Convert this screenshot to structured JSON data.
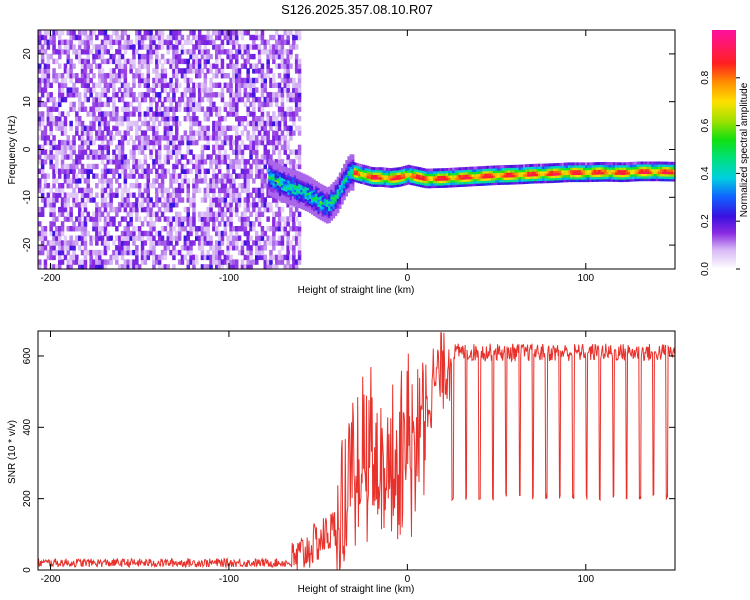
{
  "title": "S126.2025.357.08.10.R07",
  "chart_data": [
    {
      "type": "heatmap",
      "xlabel": "Height of straight line (km)",
      "ylabel": "Frequency (Hz)",
      "xlim": [
        -207,
        150
      ],
      "ylim": [
        -25,
        25
      ],
      "xticks": [
        -200,
        -100,
        0,
        100
      ],
      "yticks": [
        -20,
        -10,
        0,
        10,
        20
      ],
      "colorbar": {
        "label": "Normalized spectral amplitude",
        "range": [
          0.0,
          1.0
        ],
        "ticks": [
          0.0,
          0.2,
          0.4,
          0.6,
          0.8
        ],
        "tick_labels": [
          "0.0",
          "0.2",
          "0.4",
          "0.6",
          "0.8"
        ]
      },
      "noise_region": {
        "x_from": -207,
        "x_to": -60,
        "freq_from": -25,
        "freq_to": 25
      },
      "ridge": {
        "x": [
          -78,
          -70,
          -62,
          -56,
          -50,
          -45,
          -40,
          -36,
          -33,
          -30,
          -25,
          -20,
          -15,
          -10,
          -5,
          0,
          10,
          20,
          30,
          40,
          50,
          60,
          70,
          80,
          90,
          100,
          110,
          120,
          130,
          140,
          150
        ],
        "freq": [
          -6,
          -7.5,
          -8.5,
          -9.5,
          -11,
          -12,
          -10,
          -7,
          -5,
          -5,
          -5.5,
          -6,
          -6,
          -6.2,
          -6,
          -5.5,
          -6.3,
          -6.2,
          -6,
          -5.8,
          -5.6,
          -5.5,
          -5.3,
          -5.2,
          -5.0,
          -5.0,
          -4.9,
          -5.0,
          -4.8,
          -4.8,
          -4.9
        ],
        "peak_amplitude": 1.0
      }
    },
    {
      "type": "line",
      "xlabel": "Height of straight line (km)",
      "ylabel": "SNR (10 * v/v)",
      "xlim": [
        -207,
        150
      ],
      "ylim": [
        0,
        670
      ],
      "xticks": [
        -200,
        -100,
        0,
        100
      ],
      "yticks": [
        0,
        200,
        400,
        600
      ],
      "color": "#e8312b",
      "series": [
        {
          "name": "SNR",
          "segments": [
            {
              "x_from": -207,
              "x_to": -65,
              "level": 20,
              "noise": 12
            },
            {
              "x_from": -65,
              "x_to": -40,
              "level_from": 20,
              "level_to": 120,
              "noise": 60
            },
            {
              "x_from": -40,
              "x_to": -20,
              "level_from": 150,
              "level_to": 420,
              "noise": 200
            },
            {
              "x_from": -20,
              "x_to": 5,
              "level_from": 320,
              "level_to": 450,
              "noise": 180
            },
            {
              "x_from": 5,
              "x_to": 25,
              "level_from": 450,
              "level_to": 600,
              "noise": 120
            },
            {
              "x_from": 25,
              "x_to": 150,
              "level": 610,
              "noise": 25,
              "dips_to": 195,
              "dip_spacing": 7.5
            }
          ],
          "max_value": 665
        }
      ]
    }
  ]
}
